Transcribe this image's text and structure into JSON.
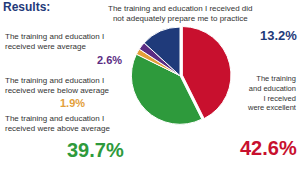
{
  "chart_data": {
    "type": "pie",
    "title": "Results:",
    "categories": [
      "The training and education I received were excellent",
      "The training and education I received were above average",
      "The training and education I received were below average",
      "The training and education I received were average",
      "The training and education I received did not adequately prepare me to practice"
    ],
    "values": [
      42.6,
      39.7,
      1.9,
      2.6,
      13.2
    ],
    "value_labels": [
      "42.6%",
      "39.7%",
      "1.9%",
      "2.6%",
      "13.2%"
    ],
    "colors": [
      "#c8102e",
      "#2e9a3c",
      "#e3a03a",
      "#5b2c83",
      "#1f3a7a"
    ],
    "data_labels": true
  }
}
